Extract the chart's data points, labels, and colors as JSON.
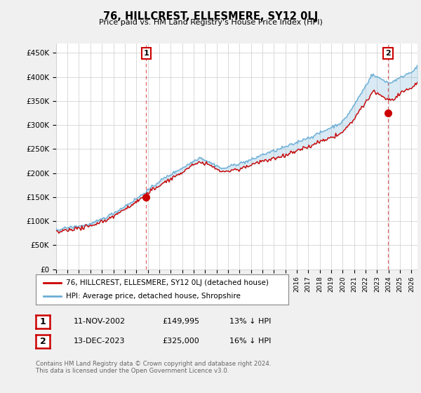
{
  "title": "76, HILLCREST, ELLESMERE, SY12 0LJ",
  "subtitle": "Price paid vs. HM Land Registry's House Price Index (HPI)",
  "ylabel_ticks": [
    "£0",
    "£50K",
    "£100K",
    "£150K",
    "£200K",
    "£250K",
    "£300K",
    "£350K",
    "£400K",
    "£450K"
  ],
  "ytick_values": [
    0,
    50000,
    100000,
    150000,
    200000,
    250000,
    300000,
    350000,
    400000,
    450000
  ],
  "ylim": [
    0,
    470000
  ],
  "xlim_start": 1995.0,
  "xlim_end": 2026.5,
  "hpi_color": "#a8c8e8",
  "price_color": "#cc0000",
  "fill_color": "#ddeeff",
  "marker1_year": 2002.87,
  "marker1_value": 149995,
  "marker2_year": 2023.96,
  "marker2_value": 325000,
  "marker1_label": "1",
  "marker2_label": "2",
  "legend_line1": "76, HILLCREST, ELLESMERE, SY12 0LJ (detached house)",
  "legend_line2": "HPI: Average price, detached house, Shropshire",
  "table_row1": [
    "1",
    "11-NOV-2002",
    "£149,995",
    "13% ↓ HPI"
  ],
  "table_row2": [
    "2",
    "13-DEC-2023",
    "£325,000",
    "16% ↓ HPI"
  ],
  "footnote": "Contains HM Land Registry data © Crown copyright and database right 2024.\nThis data is licensed under the Open Government Licence v3.0.",
  "background_color": "#f0f0f0",
  "plot_bg_color": "#ffffff",
  "grid_color": "#cccccc",
  "hpi_line_color": "#6baed6",
  "price_line_color": "#cc0000"
}
